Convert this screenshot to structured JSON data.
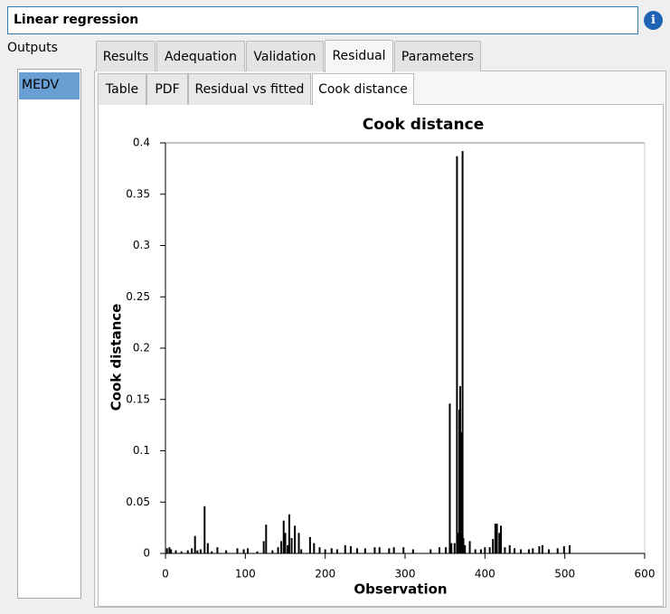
{
  "title": "Linear regression",
  "outputs_label": "Outputs",
  "outputs": [
    "MEDV"
  ],
  "tabs": [
    "Results",
    "Adequation",
    "Validation",
    "Residual",
    "Parameters"
  ],
  "subtabs": [
    "Table",
    "PDF",
    "Residual vs fitted",
    "Cook distance"
  ],
  "chart_data": {
    "type": "bar",
    "title": "Cook distance",
    "x_label": "Observation",
    "y_label": "Cook distance",
    "color": "#000000",
    "x": [
      2,
      5,
      7,
      13,
      20,
      28,
      33,
      37,
      40,
      44,
      49,
      53,
      58,
      65,
      76,
      90,
      98,
      103,
      115,
      123,
      126,
      134,
      141,
      145,
      148,
      150,
      153,
      155,
      158,
      162,
      167,
      170,
      181,
      186,
      193,
      200,
      208,
      215,
      225,
      232,
      240,
      250,
      262,
      268,
      280,
      286,
      298,
      310,
      332,
      343,
      351,
      356,
      358,
      362,
      365,
      366,
      368,
      369,
      370,
      372,
      373,
      375,
      381,
      388,
      395,
      400,
      406,
      410,
      413,
      415,
      418,
      420,
      425,
      431,
      437,
      445,
      455,
      460,
      468,
      472,
      480,
      491,
      499,
      506
    ],
    "values": [
      0.005,
      0.006,
      0.004,
      0.003,
      0.002,
      0.003,
      0.005,
      0.017,
      0.003,
      0.004,
      0.046,
      0.01,
      0.002,
      0.006,
      0.003,
      0.005,
      0.004,
      0.005,
      0.002,
      0.012,
      0.028,
      0.003,
      0.006,
      0.012,
      0.032,
      0.02,
      0.008,
      0.038,
      0.015,
      0.027,
      0.02,
      0.004,
      0.016,
      0.01,
      0.006,
      0.004,
      0.005,
      0.004,
      0.008,
      0.007,
      0.005,
      0.005,
      0.006,
      0.006,
      0.005,
      0.006,
      0.006,
      0.004,
      0.004,
      0.006,
      0.006,
      0.146,
      0.01,
      0.01,
      0.387,
      0.02,
      0.14,
      0.163,
      0.118,
      0.392,
      0.015,
      0.008,
      0.012,
      0.004,
      0.004,
      0.006,
      0.006,
      0.014,
      0.029,
      0.029,
      0.02,
      0.027,
      0.006,
      0.008,
      0.005,
      0.004,
      0.004,
      0.005,
      0.007,
      0.008,
      0.004,
      0.005,
      0.007,
      0.008
    ],
    "xlim": [
      0,
      600
    ],
    "xticks": [
      0,
      100,
      200,
      300,
      400,
      500,
      600
    ],
    "ylim": [
      0,
      0.4
    ],
    "yticks": [
      0,
      0.05,
      0.1,
      0.15,
      0.2,
      0.25,
      0.3,
      0.35,
      0.4
    ]
  }
}
